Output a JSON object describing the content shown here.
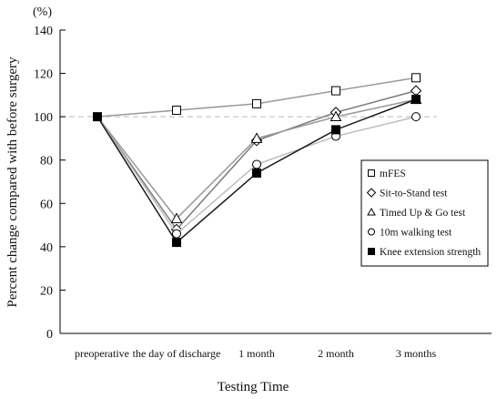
{
  "chart_data": {
    "type": "line",
    "title": "",
    "ylabel": "Percent change compared with before surgery",
    "yunit": "(%)",
    "xlabel": "Testing Time",
    "categories": [
      "preoperative",
      "the day of discharge",
      "1 month",
      "2 month",
      "3 months"
    ],
    "ylim": [
      0,
      140
    ],
    "yticks": [
      0,
      20,
      40,
      60,
      80,
      100,
      120,
      140
    ],
    "reference_line": 100,
    "legend_position": "right",
    "series": [
      {
        "name": "mFES",
        "marker": "square-open",
        "color": "#000000",
        "line_color": "#9a9a9a",
        "values": [
          100,
          103,
          106,
          112,
          118
        ]
      },
      {
        "name": "Sit-to-Stand test",
        "marker": "diamond-open",
        "color": "#000000",
        "line_color": "#7a7a7a",
        "values": [
          100,
          48,
          89,
          102,
          112
        ]
      },
      {
        "name": "Timed Up & Go test",
        "marker": "triangle-open",
        "color": "#000000",
        "line_color": "#9a9a9a",
        "values": [
          100,
          53,
          90,
          100,
          108
        ]
      },
      {
        "name": "10m walking test",
        "marker": "circle-open",
        "color": "#000000",
        "line_color": "#bdbdbd",
        "values": [
          100,
          46,
          78,
          91,
          100
        ]
      },
      {
        "name": "Knee extension strength",
        "marker": "square-filled",
        "color": "#000000",
        "line_color": "#1a1a1a",
        "values": [
          100,
          42,
          74,
          94,
          108
        ]
      }
    ]
  }
}
